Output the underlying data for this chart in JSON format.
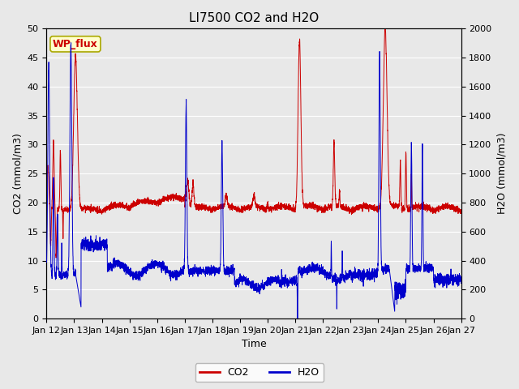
{
  "title": "LI7500 CO2 and H2O",
  "xlabel": "Time",
  "ylabel_left": "CO2 (mmol/m3)",
  "ylabel_right": "H2O (mmol/m3)",
  "ylim_left": [
    0,
    50
  ],
  "ylim_right": [
    0,
    2000
  ],
  "x_tick_labels": [
    "Jan 12",
    "Jan 13",
    "Jan 14",
    "Jan 15",
    "Jan 16",
    "Jan 17",
    "Jan 18",
    "Jan 19",
    "Jan 20",
    "Jan 21",
    "Jan 22",
    "Jan 23",
    "Jan 24",
    "Jan 25",
    "Jan 26",
    "Jan 27"
  ],
  "co2_color": "#cc0000",
  "h2o_color": "#0000cc",
  "background_color": "#e8e8e8",
  "legend_box_color": "#ffffcc",
  "legend_box_edge": "#aaa800",
  "wp_flux_label": "WP_flux",
  "wp_flux_text_color": "#cc0000",
  "title_fontsize": 11,
  "axis_fontsize": 9,
  "tick_fontsize": 8,
  "legend_fontsize": 9,
  "grid_color": "#ffffff",
  "yticks_left": [
    0,
    5,
    10,
    15,
    20,
    25,
    30,
    35,
    40,
    45,
    50
  ],
  "yticks_right": [
    0,
    200,
    400,
    600,
    800,
    1000,
    1200,
    1400,
    1600,
    1800,
    2000
  ]
}
